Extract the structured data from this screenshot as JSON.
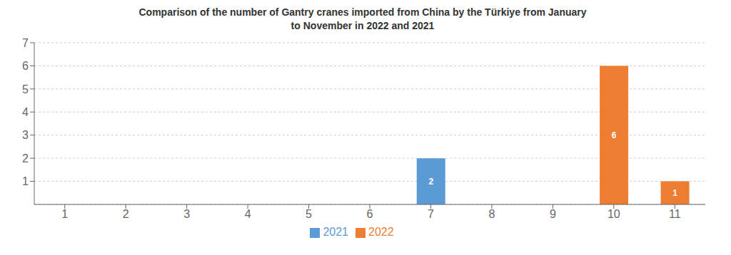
{
  "chart_data": {
    "type": "bar",
    "title": "Comparison of the number of Gantry cranes imported from China by the Türkiye from January\nto November in 2022 and 2021",
    "categories": [
      "1",
      "2",
      "3",
      "4",
      "5",
      "6",
      "7",
      "8",
      "9",
      "10",
      "11"
    ],
    "series": [
      {
        "name": "2021",
        "color": "#5b9bd5",
        "values": [
          0,
          0,
          0,
          0,
          0,
          0,
          2,
          0,
          0,
          0,
          0
        ]
      },
      {
        "name": "2022",
        "color": "#ed7d31",
        "values": [
          0,
          0,
          0,
          0,
          0,
          0,
          0,
          0,
          0,
          6,
          1
        ]
      }
    ],
    "ylim": [
      0,
      7
    ],
    "yticks": [
      1,
      2,
      3,
      4,
      5,
      6,
      7
    ],
    "grid": true,
    "legend": "bottom",
    "data_labels": true
  }
}
